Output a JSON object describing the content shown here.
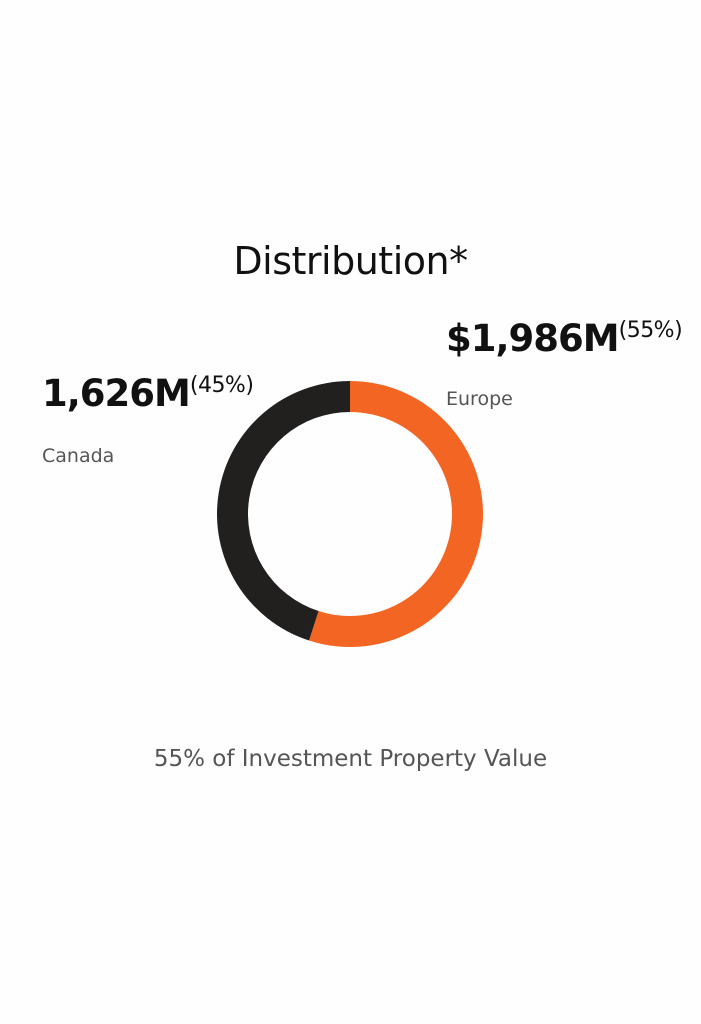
{
  "title": "Distribution*",
  "footnote": "55% of Investment Property Value",
  "colors": {
    "Europe": "#f26522",
    "Canada": "#221f1f"
  },
  "labels": {
    "europe": {
      "amount": "$1,986M",
      "pct": "(55%)",
      "name": "Europe"
    },
    "canada": {
      "amount": "1,626M",
      "pct": "(45%)",
      "name": "Canada"
    }
  },
  "chart_data": {
    "type": "pie",
    "donut": true,
    "title": "Distribution*",
    "slices": [
      {
        "label": "Europe",
        "value": 1986,
        "percent": 55
      },
      {
        "label": "Canada",
        "value": 1626,
        "percent": 45
      }
    ],
    "start": "top",
    "direction": "clockwise"
  }
}
